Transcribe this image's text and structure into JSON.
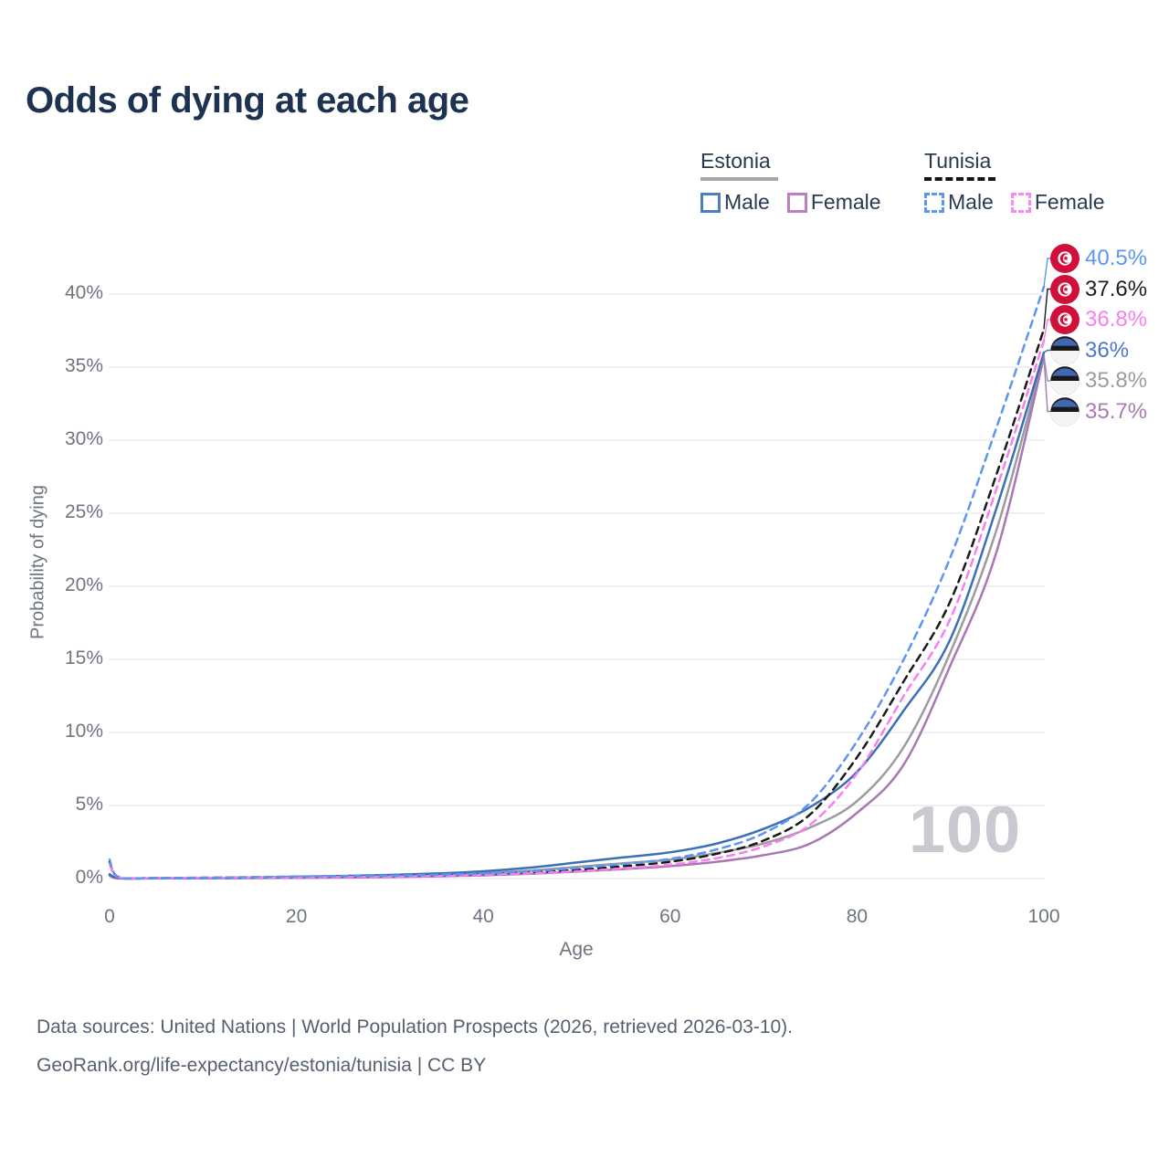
{
  "title": "Odds of dying at each age",
  "legend": {
    "groups": [
      {
        "label": "Estonia",
        "line_style": "solid",
        "underline_color": "#a6a6a6",
        "items": [
          {
            "label": "Male",
            "color": "#4d7fc0"
          },
          {
            "label": "Female",
            "color": "#bb7fc2"
          }
        ]
      },
      {
        "label": "Tunisia",
        "line_style": "dashed",
        "underline_color": "#141414",
        "items": [
          {
            "label": "Male",
            "color": "#5d96f2"
          },
          {
            "label": "Female",
            "color": "#fc86f2"
          }
        ]
      }
    ]
  },
  "chart_data": {
    "type": "line",
    "title": "Odds of dying at each age",
    "xlabel": "Age",
    "ylabel": "Probability of dying",
    "xlim": [
      0,
      100
    ],
    "ylim": [
      0,
      42
    ],
    "x_ticks": [
      0,
      20,
      40,
      60,
      80,
      100
    ],
    "y_ticks": [
      0,
      5,
      10,
      15,
      20,
      25,
      30,
      35,
      40
    ],
    "y_tick_suffix": "%",
    "grid": "horizontal",
    "legend_position": "top-right",
    "x": [
      0,
      1,
      5,
      10,
      15,
      20,
      25,
      30,
      35,
      40,
      45,
      50,
      55,
      60,
      65,
      70,
      75,
      80,
      85,
      90,
      95,
      100
    ],
    "series": [
      {
        "name": "Estonia",
        "country": "estonia",
        "sex": "both",
        "style": "solid",
        "color": "#9b9ba1",
        "values": [
          0.25,
          0.02,
          0.02,
          0.025,
          0.05,
          0.09,
          0.13,
          0.18,
          0.25,
          0.37,
          0.55,
          0.8,
          1.05,
          1.3,
          1.75,
          2.4,
          3.5,
          5.3,
          9.0,
          15.5,
          24.0,
          35.8
        ]
      },
      {
        "name": "Estonia Female",
        "country": "estonia",
        "sex": "female",
        "style": "solid",
        "color": "#a878b4",
        "values": [
          0.2,
          0.015,
          0.015,
          0.02,
          0.03,
          0.05,
          0.07,
          0.1,
          0.15,
          0.22,
          0.33,
          0.48,
          0.65,
          0.85,
          1.15,
          1.6,
          2.4,
          4.5,
          7.8,
          14.6,
          22.5,
          35.7
        ]
      },
      {
        "name": "Estonia Male",
        "country": "estonia",
        "sex": "male",
        "style": "solid",
        "color": "#3b70b5",
        "values": [
          0.3,
          0.03,
          0.02,
          0.03,
          0.07,
          0.13,
          0.18,
          0.25,
          0.35,
          0.5,
          0.75,
          1.1,
          1.45,
          1.8,
          2.4,
          3.4,
          4.9,
          7.3,
          11.5,
          16.4,
          25.5,
          36.0
        ]
      },
      {
        "name": "Tunisia",
        "country": "tunisia",
        "sex": "both",
        "style": "dashed",
        "color": "#1a1a1a",
        "values": [
          1.15,
          0.09,
          0.045,
          0.055,
          0.08,
          0.11,
          0.14,
          0.17,
          0.22,
          0.3,
          0.42,
          0.6,
          0.85,
          1.15,
          1.7,
          2.6,
          4.4,
          8.3,
          13.5,
          19.0,
          27.8,
          37.6
        ]
      },
      {
        "name": "Tunisia Female",
        "country": "tunisia",
        "sex": "female",
        "style": "dashed",
        "color": "#f97ef0",
        "values": [
          1.0,
          0.08,
          0.04,
          0.05,
          0.07,
          0.09,
          0.11,
          0.14,
          0.18,
          0.26,
          0.36,
          0.5,
          0.7,
          0.95,
          1.4,
          2.2,
          3.7,
          7.2,
          12.5,
          17.8,
          26.8,
          36.8
        ]
      },
      {
        "name": "Tunisia Male",
        "country": "tunisia",
        "sex": "male",
        "style": "dashed",
        "color": "#5d96f2",
        "values": [
          1.3,
          0.1,
          0.05,
          0.06,
          0.1,
          0.14,
          0.17,
          0.2,
          0.26,
          0.35,
          0.5,
          0.72,
          1.0,
          1.35,
          2.0,
          3.1,
          5.2,
          9.4,
          15.0,
          22.0,
          31.0,
          40.5
        ]
      }
    ],
    "end_labels": [
      {
        "country": "tunisia",
        "series": "Tunisia Male",
        "text": "40.5%",
        "value": 40.5,
        "color": "#5d96f2"
      },
      {
        "country": "tunisia",
        "series": "Tunisia",
        "text": "37.6%",
        "value": 37.6,
        "color": "#1f1f1f"
      },
      {
        "country": "tunisia",
        "series": "Tunisia Female",
        "text": "36.8%",
        "value": 36.8,
        "color": "#f97ef0"
      },
      {
        "country": "estonia",
        "series": "Estonia Male",
        "text": "36%",
        "value": 36,
        "color": "#4b78c9"
      },
      {
        "country": "estonia",
        "series": "Estonia",
        "text": "35.8%",
        "value": 35.8,
        "color": "#9b9ba1"
      },
      {
        "country": "estonia",
        "series": "Estonia Female",
        "text": "35.7%",
        "value": 35.7,
        "color": "#a87bb5"
      }
    ],
    "flag_colors": {
      "tunisia": {
        "field": "#d0103a",
        "emblem": "#d0103a",
        "disc": "#ffffff"
      },
      "estonia": {
        "top": "#3f69b2",
        "middle": "#191919",
        "bottom": "#f4f4f6"
      }
    }
  },
  "watermark": "100",
  "footer": {
    "line1": "Data sources: United Nations | World Population Prospects (2026, retrieved 2026-03-10).",
    "line2": "GeoRank.org/life-expectancy/estonia/tunisia | CC BY"
  }
}
